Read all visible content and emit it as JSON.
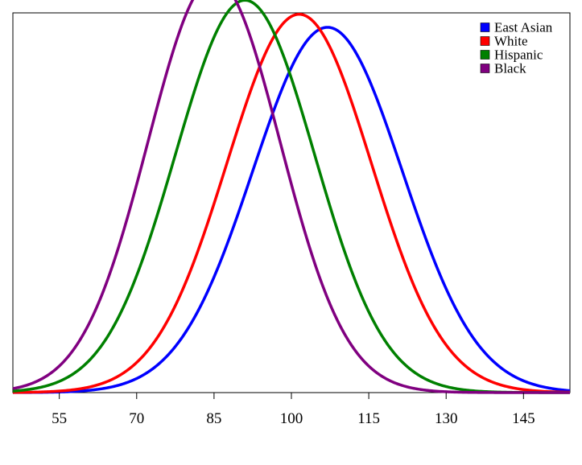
{
  "chart_data": {
    "type": "line",
    "title": "",
    "xlabel": "",
    "ylabel": "",
    "xlim": [
      46,
      154
    ],
    "ylim": [
      0,
      0.0286
    ],
    "xticks": [
      55,
      70,
      85,
      100,
      115,
      130,
      145
    ],
    "xtick_labels": [
      "55",
      "70",
      "85",
      "100",
      "115",
      "130",
      "145"
    ],
    "grid": false,
    "y_axis_visible": false,
    "legend_position": "top-right",
    "series": [
      {
        "name": "East Asian",
        "color": "#0000FF",
        "distribution": "normal",
        "mean": 107,
        "sd": 14.5
      },
      {
        "name": "White",
        "color": "#FF0000",
        "distribution": "normal",
        "mean": 101.5,
        "sd": 14
      },
      {
        "name": "Hispanic",
        "color": "#008000",
        "distribution": "normal",
        "mean": 91,
        "sd": 13.5
      },
      {
        "name": "Black",
        "color": "#800080",
        "distribution": "normal",
        "mean": 85,
        "sd": 12.8
      }
    ]
  }
}
